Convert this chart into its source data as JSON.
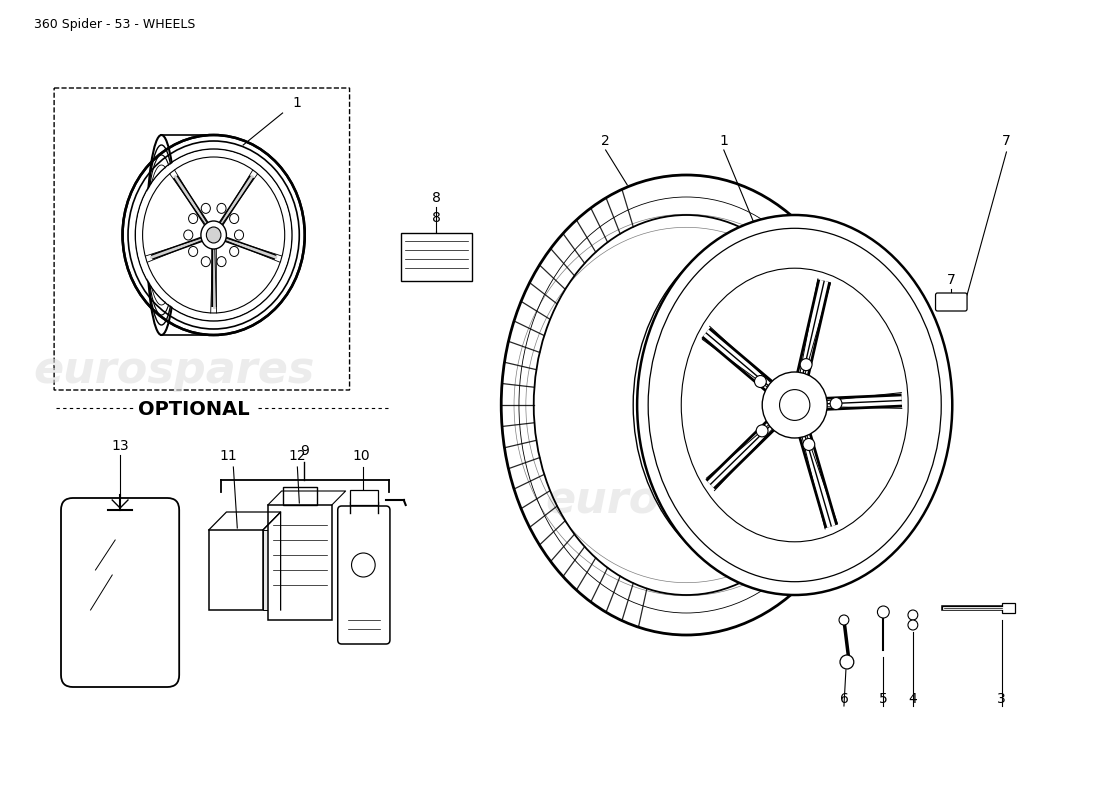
{
  "title": "360 Spider - 53 - WHEELS",
  "background_color": "#ffffff",
  "title_fontsize": 9,
  "watermark_text": "eurospares",
  "fig_width": 11.0,
  "fig_height": 8.0,
  "dpi": 100
}
